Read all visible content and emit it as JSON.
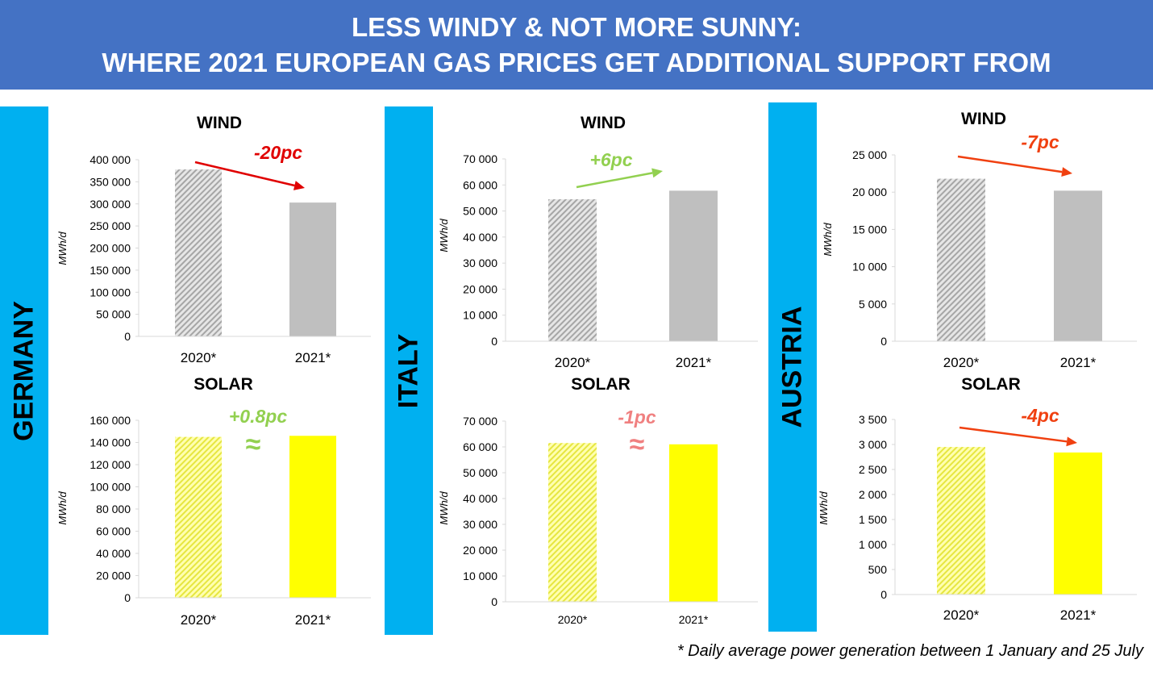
{
  "header": {
    "line1": "LESS WINDY & NOT MORE SUNNY:",
    "line2": "WHERE 2021 EUROPEAN GAS PRICES GET ADDITIONAL SUPPORT FROM"
  },
  "countries": [
    "GERMANY",
    "ITALY",
    "AUSTRIA"
  ],
  "footnote": "* Daily average power generation between 1 January and 25 July",
  "colors": {
    "header": "#4472c4",
    "band": "#00b0f0",
    "wind": "#bfbfbf",
    "solar": "#ffff00"
  },
  "chart_data": [
    {
      "type": "bar",
      "country": "GERMANY",
      "title": "WIND",
      "ylabel": "MWh/d",
      "categories": [
        "2020*",
        "2021*"
      ],
      "values": [
        378000,
        303000
      ],
      "ylim": [
        0,
        400000
      ],
      "yticks": [
        "0",
        "50 000",
        "100 000",
        "150 000",
        "200 000",
        "250 000",
        "300 000",
        "350 000",
        "400 000"
      ],
      "annotation": "-20pc",
      "annotation_color": "#e00000"
    },
    {
      "type": "bar",
      "country": "GERMANY",
      "title": "SOLAR",
      "ylabel": "MWh/d",
      "categories": [
        "2020*",
        "2021*"
      ],
      "values": [
        145000,
        146000
      ],
      "ylim": [
        0,
        160000
      ],
      "yticks": [
        "0",
        "20 000",
        "40 000",
        "60 000",
        "80 000",
        "100 000",
        "120 000",
        "140 000",
        "160 000"
      ],
      "annotation": "+0.8pc",
      "approx": "≈",
      "annotation_color": "#92d050"
    },
    {
      "type": "bar",
      "country": "ITALY",
      "title": "WIND",
      "ylabel": "MWh/d",
      "categories": [
        "2020*",
        "2021*"
      ],
      "values": [
        54500,
        57800
      ],
      "ylim": [
        0,
        70000
      ],
      "yticks": [
        "0",
        "10 000",
        "20 000",
        "30 000",
        "40 000",
        "50 000",
        "60 000",
        "70 000"
      ],
      "annotation": "+6pc",
      "annotation_color": "#92d050"
    },
    {
      "type": "bar",
      "country": "ITALY",
      "title": "SOLAR",
      "ylabel": "MWh/d",
      "categories": [
        "2020*",
        "2021*"
      ],
      "values": [
        61500,
        61000
      ],
      "ylim": [
        0,
        70000
      ],
      "yticks": [
        "0",
        "10 000",
        "20 000",
        "30 000",
        "40 000",
        "50 000",
        "60 000",
        "70 000"
      ],
      "annotation": "-1pc",
      "approx": "≈",
      "annotation_color": "#f08080"
    },
    {
      "type": "bar",
      "country": "AUSTRIA",
      "title": "WIND",
      "ylabel": "MWh/d",
      "categories": [
        "2020*",
        "2021*"
      ],
      "values": [
        21800,
        20200
      ],
      "ylim": [
        0,
        25000
      ],
      "yticks": [
        "0",
        "5 000",
        "10 000",
        "15 000",
        "20 000",
        "25 000"
      ],
      "annotation": "-7pc",
      "annotation_color": "#f04010"
    },
    {
      "type": "bar",
      "country": "AUSTRIA",
      "title": "SOLAR",
      "ylabel": "MWh/d",
      "categories": [
        "2020*",
        "2021*"
      ],
      "values": [
        2950,
        2840
      ],
      "ylim": [
        0,
        3500
      ],
      "yticks": [
        "0",
        "500",
        "1 000",
        "1 500",
        "2 000",
        "2 500",
        "3 000",
        "3 500"
      ],
      "annotation": "-4pc",
      "annotation_color": "#f04010"
    }
  ]
}
